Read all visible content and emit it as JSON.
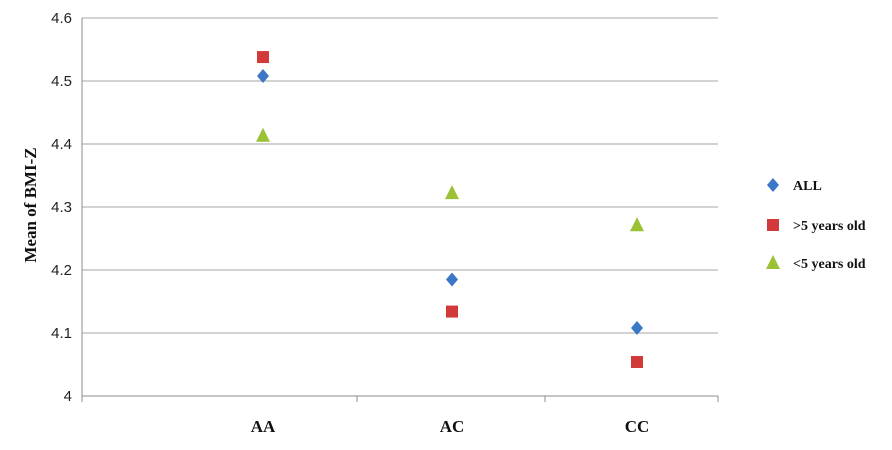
{
  "chart_data": {
    "type": "scatter",
    "ylabel": "Mean of BMI-Z",
    "xlabel": "",
    "categories": [
      "AA",
      "AC",
      "CC"
    ],
    "ylim": [
      4,
      4.6
    ],
    "yticks": [
      "4",
      "4.1",
      "4.2",
      "4.3",
      "4.4",
      "4.5",
      "4.6"
    ],
    "grid": true,
    "legend_position": "right",
    "series": [
      {
        "name": "ALL",
        "marker": "diamond",
        "color": "#3a77c7",
        "values": [
          4.508,
          4.185,
          4.108
        ]
      },
      {
        "name": ">5 years old",
        "marker": "square",
        "color": "#d23a3a",
        "values": [
          4.538,
          4.134,
          4.054
        ]
      },
      {
        "name": "<5 years old",
        "marker": "triangle",
        "color": "#9bc235",
        "values": [
          4.413,
          4.322,
          4.271
        ]
      }
    ]
  }
}
